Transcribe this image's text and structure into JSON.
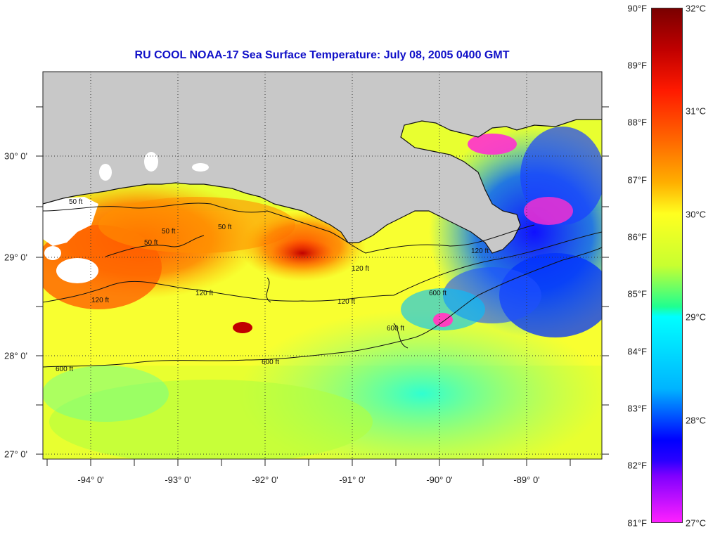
{
  "title": "RU COOL  NOAA-17  Sea Surface Temperature:  July 08, 2005 0400 GMT",
  "lon_labels": [
    "-94° 0'",
    "-93° 0'",
    "-92° 0'",
    "-91° 0'",
    "-90° 0'",
    "-89° 0'"
  ],
  "lat_labels": [
    "30° 0'",
    "29° 0'",
    "28° 0'",
    "27° 0'"
  ],
  "contour_labels": [
    "50 ft",
    "50 ft",
    "50 ft",
    "50 ft",
    "120 ft",
    "120 ft",
    "120 ft",
    "120 ft",
    "600 ft",
    "600 ft",
    "600 ft",
    "600 ft",
    "120 ft"
  ],
  "colorbar": {
    "fahrenheit": [
      "90°F",
      "89°F",
      "88°F",
      "87°F",
      "86°F",
      "85°F",
      "84°F",
      "83°F",
      "82°F",
      "81°F"
    ],
    "celsius": [
      "32°C",
      "31°C",
      "30°C",
      "29°C",
      "28°C",
      "27°C"
    ]
  },
  "colors": {
    "land": "#c8c8c8",
    "title": "#1010c8",
    "ocean_warm": "#ff6a00",
    "ocean_mid": "#ffff20",
    "ocean_cool": "#00ffff",
    "ocean_cold": "#0000ff"
  }
}
